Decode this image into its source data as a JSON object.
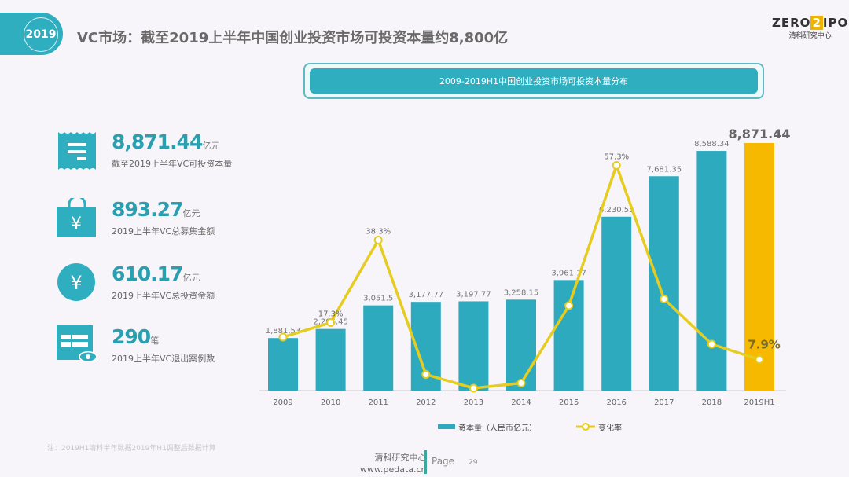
{
  "header": {
    "year_badge": "2019",
    "title": "VC市场：截至2019上半年中国创业投资市场可投资本量约8,800亿",
    "logo_text": "ZERO2IPO",
    "logo_sub": "清科研究中心"
  },
  "chart_box_title": "2009-2019H1中国创业投资市场可投资本量分布",
  "stats": [
    {
      "icon": "receipt-icon",
      "value": "8,871.44",
      "unit": "亿元",
      "desc": "截至2019上半年VC可投资本量"
    },
    {
      "icon": "shopping-bag-yen-icon",
      "value": "893.27",
      "unit": "亿元",
      "desc": "2019上半年VC总募集金额"
    },
    {
      "icon": "yen-coin-icon",
      "value": "610.17",
      "unit": "亿元",
      "desc": "2019上半年VC总投资金额"
    },
    {
      "icon": "window-eye-icon",
      "value": "290",
      "unit": "笔",
      "desc": "2019上半年VC退出案例数"
    }
  ],
  "chart_data": {
    "type": "bar+line",
    "categories": [
      "2009",
      "2010",
      "2011",
      "2012",
      "2013",
      "2014",
      "2015",
      "2016",
      "2017",
      "2018",
      "2019H1"
    ],
    "series": [
      {
        "name": "资本量（人民币亿元）",
        "type": "bar",
        "values": [
          1881.53,
          2206.45,
          3051.5,
          3177.77,
          3197.77,
          3258.15,
          3961.17,
          6230.55,
          7681.35,
          8588.34,
          8871.44
        ],
        "labels": [
          "1,881.53",
          "2,206.45",
          "3,051.5",
          "3,177.77",
          "3,197.77",
          "3,258.15",
          "3,961.17",
          "6,230.55",
          "7,681.35",
          "8,588.34",
          "8,871.44"
        ],
        "color": "#2eaabf",
        "highlight_color": "#f7b900"
      },
      {
        "name": "变化率",
        "type": "line",
        "values": [
          13.6,
          17.3,
          38.3,
          4.1,
          0.6,
          1.9,
          21.6,
          57.3,
          23.3,
          11.8,
          7.9
        ],
        "labels": [
          "",
          "17.3%",
          "38.3%",
          "",
          "",
          "",
          "",
          "57.3%",
          "",
          "",
          "7.9%"
        ],
        "unit": "%",
        "color": "#e6cc1e"
      }
    ],
    "ylim": [
      0,
      8871.44
    ],
    "grid": false,
    "legend": "bottom"
  },
  "note": "注：2019H1清科半年数据2019年H1调整后数据计算",
  "footer": {
    "org": "清科研究中心",
    "url": "www.pedata.cn",
    "page_label": "Page",
    "page_number": "29"
  }
}
